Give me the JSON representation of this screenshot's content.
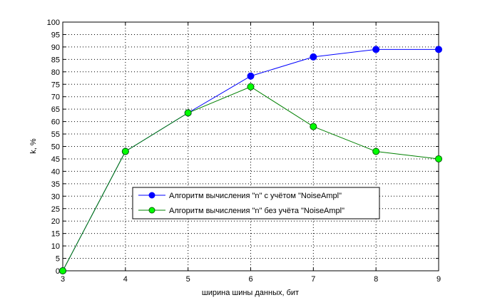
{
  "chart_data": {
    "type": "line",
    "title": "",
    "xlabel": "ширина шины данных, бит",
    "ylabel": "k, %",
    "xlim": [
      3,
      9
    ],
    "ylim": [
      0,
      100
    ],
    "xticks": [
      3,
      4,
      5,
      6,
      7,
      8,
      9
    ],
    "yticks": [
      0,
      5,
      10,
      15,
      20,
      25,
      30,
      35,
      40,
      45,
      50,
      55,
      60,
      65,
      70,
      75,
      80,
      85,
      90,
      95,
      100
    ],
    "grid": true,
    "legend_placement": "lower-center",
    "x": [
      3,
      4,
      5,
      6,
      7,
      8,
      9
    ],
    "series": [
      {
        "name": "Алгоритм вычисления \"n\" с учётом \"NoiseAmpl\"",
        "values": [
          0,
          48,
          63.5,
          78.3,
          86,
          89,
          89
        ],
        "line_color": "#0000ff",
        "marker_color": "#0000ff"
      },
      {
        "name": "Алгоритм вычисления \"n\" без учёта \"NoiseAmpl\"",
        "values": [
          0,
          48,
          63.5,
          74,
          58,
          48,
          45
        ],
        "line_color": "#008000",
        "marker_color": "#00ff00"
      }
    ]
  }
}
